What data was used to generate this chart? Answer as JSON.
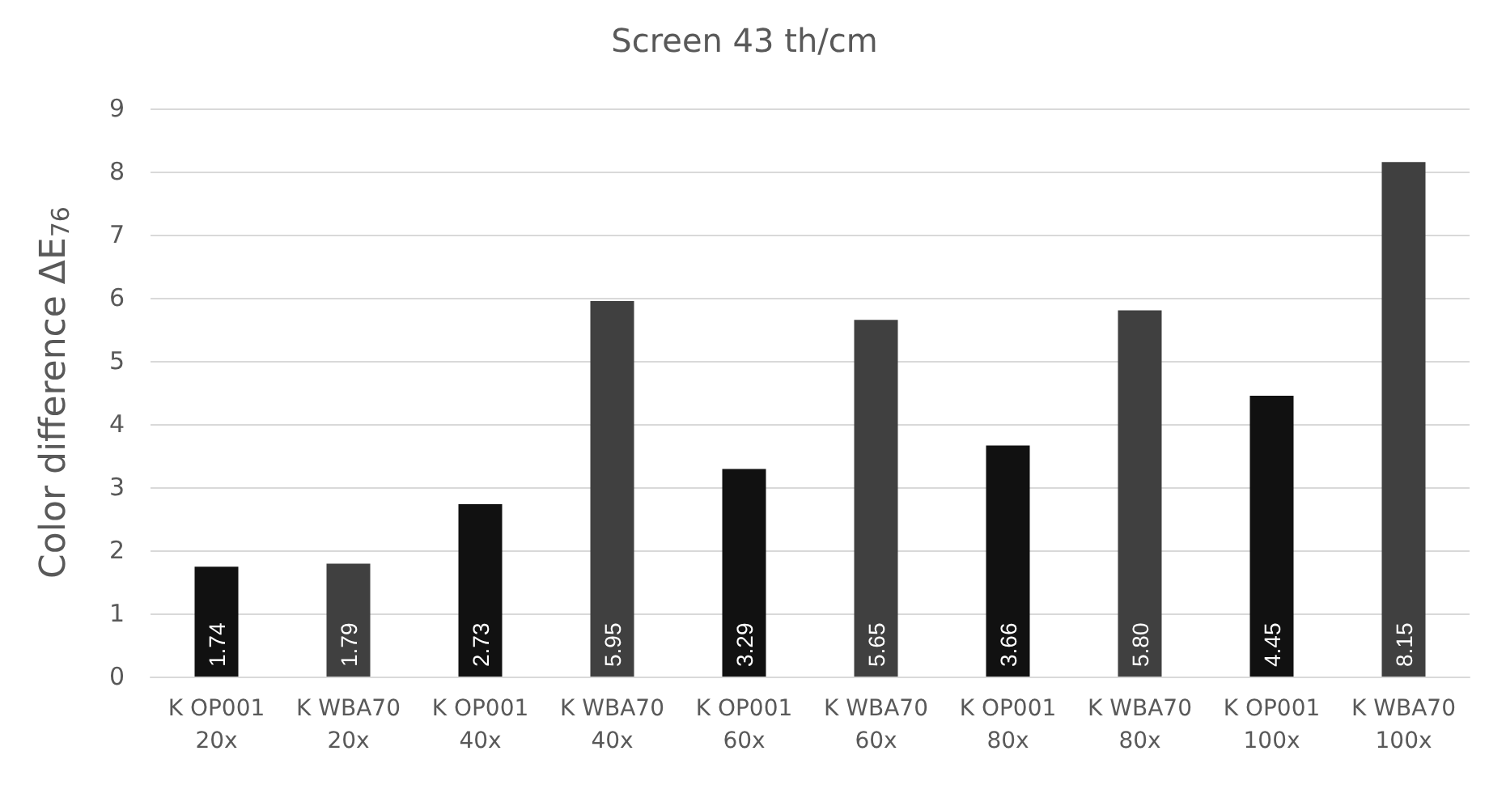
{
  "chart_data": {
    "type": "bar",
    "title": "Screen 43 th/cm",
    "ylabel": "Color difference ΔE$_{76}$",
    "categories": [
      "K OP001\n20x",
      "K WBA70\n20x",
      "K OP001\n40x",
      "K WBA70\n40x",
      "K OP001\n60x",
      "K WBA70\n60x",
      "K OP001\n80x",
      "K WBA70\n80x",
      "K OP001\n100x",
      "K WBA70\n100x"
    ],
    "values": [
      1.74,
      1.79,
      2.73,
      5.95,
      3.29,
      5.65,
      3.66,
      5.8,
      4.45,
      8.15
    ],
    "value_labels": [
      "1.74",
      "1.79",
      "2.73",
      "5.95",
      "3.29",
      "5.65",
      "3.66",
      "5.80",
      "4.45",
      "8.15"
    ],
    "colors": [
      "#111111",
      "#404040",
      "#111111",
      "#404040",
      "#111111",
      "#404040",
      "#111111",
      "#404040",
      "#111111",
      "#404040"
    ],
    "ylim": [
      0,
      9
    ],
    "yticks": [
      0,
      1,
      2,
      3,
      4,
      5,
      6,
      7,
      8,
      9
    ],
    "grid": "y"
  }
}
